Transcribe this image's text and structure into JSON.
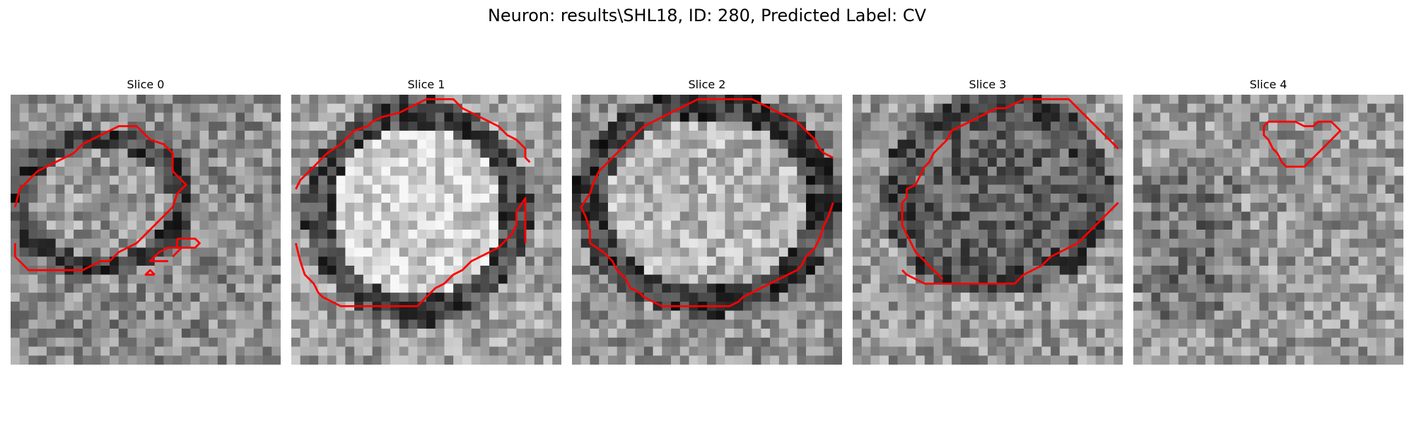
{
  "figure": {
    "title": "Neuron: results\\SHL18, ID: 280, Predicted Label: CV"
  },
  "panels": [
    {
      "title": "Slice 0",
      "contours": [
        [
          [
            0.5,
            12.5
          ],
          [
            1,
            10.5
          ],
          [
            2.5,
            9
          ],
          [
            3,
            8.5
          ],
          [
            4,
            8
          ],
          [
            5,
            7.5
          ],
          [
            6,
            7
          ],
          [
            7,
            6.5
          ],
          [
            8,
            5.5
          ],
          [
            9,
            5
          ],
          [
            10,
            4.5
          ],
          [
            12,
            3.5
          ],
          [
            14,
            3.5
          ],
          [
            15,
            4.5
          ],
          [
            15.5,
            5
          ],
          [
            17,
            5.5
          ],
          [
            18,
            6.5
          ],
          [
            18,
            8.5
          ],
          [
            19,
            9.5
          ],
          [
            19.5,
            10
          ],
          [
            18.5,
            11
          ],
          [
            18,
            12.5
          ],
          [
            17,
            13.5
          ],
          [
            16,
            14.5
          ],
          [
            15,
            15.5
          ],
          [
            14,
            16.5
          ],
          [
            13,
            17
          ],
          [
            12,
            17.5
          ],
          [
            11,
            18.5
          ],
          [
            10,
            18.5
          ],
          [
            9,
            19
          ],
          [
            8,
            19.5
          ],
          [
            6,
            19.5
          ],
          [
            4,
            19.5
          ],
          [
            2,
            19.5
          ],
          [
            1,
            18.5
          ],
          [
            0.5,
            18
          ],
          [
            0.5,
            16.5
          ]
        ],
        [
          [
            18,
            18
          ],
          [
            18.5,
            17.5
          ],
          [
            19,
            17
          ],
          [
            17.5,
            17
          ],
          [
            16.5,
            17.5
          ],
          [
            16,
            18
          ],
          [
            15.5,
            18.5
          ],
          [
            16.5,
            18.5
          ],
          [
            17.5,
            18.5
          ]
        ],
        [
          [
            16,
            20
          ],
          [
            15,
            20
          ],
          [
            15.5,
            19.5
          ],
          [
            16,
            20
          ]
        ],
        [
          [
            18.5,
            16
          ],
          [
            20.5,
            16
          ],
          [
            21,
            16.5
          ],
          [
            20.5,
            17
          ],
          [
            18.5,
            17
          ],
          [
            18.5,
            16
          ]
        ]
      ]
    },
    {
      "title": "Slice 1",
      "contours": [
        [
          [
            0.5,
            16.5
          ],
          [
            1,
            18.5
          ],
          [
            1.5,
            20
          ],
          [
            2.5,
            21
          ],
          [
            3,
            22
          ],
          [
            3.5,
            22.5
          ],
          [
            4.5,
            23
          ],
          [
            5.5,
            23.5
          ],
          [
            8,
            23.5
          ],
          [
            11,
            23.5
          ],
          [
            13,
            23.5
          ],
          [
            14,
            23.5
          ],
          [
            15,
            22.5
          ],
          [
            16,
            21.5
          ],
          [
            17,
            21
          ],
          [
            18,
            20
          ],
          [
            19,
            19.5
          ],
          [
            20,
            18.5
          ],
          [
            21,
            18
          ],
          [
            22,
            17.5
          ],
          [
            23,
            17
          ],
          [
            23.5,
            16.5
          ],
          [
            24,
            16
          ],
          [
            24.5,
            15.5
          ],
          [
            25,
            14.5
          ],
          [
            25,
            13
          ],
          [
            26,
            11.5
          ],
          [
            26,
            16.5
          ]
        ],
        [
          [
            0.5,
            10.5
          ],
          [
            1,
            9.5
          ],
          [
            2,
            8.5
          ],
          [
            3,
            7.5
          ],
          [
            4,
            6.5
          ],
          [
            5.5,
            5.5
          ],
          [
            6,
            5
          ],
          [
            7,
            4
          ],
          [
            8.5,
            3.5
          ],
          [
            9,
            3
          ],
          [
            10,
            2.5
          ],
          [
            12,
            2
          ],
          [
            13,
            1.5
          ],
          [
            14,
            1
          ],
          [
            15,
            0.5
          ],
          [
            16,
            0.5
          ],
          [
            18,
            0.5
          ],
          [
            19,
            1.5
          ],
          [
            20,
            2
          ],
          [
            21,
            2.5
          ],
          [
            22,
            3
          ],
          [
            23,
            3.5
          ],
          [
            24,
            4.5
          ],
          [
            25,
            5
          ],
          [
            26,
            6
          ],
          [
            26,
            7
          ],
          [
            26.5,
            7.5
          ]
        ]
      ]
    },
    {
      "title": "Slice 2",
      "contours": [
        [
          [
            2.5,
            9.5
          ],
          [
            3,
            8.5
          ],
          [
            4,
            7.5
          ],
          [
            5,
            6.5
          ],
          [
            6,
            5.5
          ],
          [
            7,
            4.5
          ],
          [
            8,
            3.5
          ],
          [
            9,
            3
          ],
          [
            10,
            2.5
          ],
          [
            11,
            2
          ],
          [
            12,
            1.5
          ],
          [
            13,
            1
          ],
          [
            14,
            0.5
          ],
          [
            16,
            0.5
          ],
          [
            18,
            0.5
          ],
          [
            20,
            0.5
          ],
          [
            21,
            1
          ],
          [
            22,
            1.5
          ],
          [
            23,
            2
          ],
          [
            24,
            2.5
          ],
          [
            25,
            3
          ],
          [
            26,
            4
          ],
          [
            27,
            5
          ],
          [
            27.5,
            6
          ],
          [
            28,
            6.5
          ],
          [
            29,
            7
          ]
        ],
        [
          [
            29,
            12
          ],
          [
            28.5,
            13.5
          ],
          [
            28,
            14.5
          ],
          [
            27.5,
            16
          ],
          [
            27,
            17
          ],
          [
            26,
            18
          ],
          [
            25.5,
            19
          ],
          [
            25,
            19.5
          ],
          [
            24,
            20
          ],
          [
            23,
            20.5
          ],
          [
            22,
            21
          ],
          [
            21,
            21.5
          ],
          [
            20,
            22
          ],
          [
            19,
            22.5
          ],
          [
            18.5,
            23
          ],
          [
            17.5,
            23.5
          ],
          [
            16,
            23.5
          ],
          [
            14,
            23.5
          ],
          [
            12,
            23.5
          ],
          [
            10,
            23.5
          ],
          [
            9,
            23
          ],
          [
            8,
            22.5
          ],
          [
            7.5,
            22
          ],
          [
            6.5,
            21.5
          ],
          [
            6,
            20.5
          ],
          [
            5,
            19.5
          ],
          [
            4.5,
            18.5
          ],
          [
            3.5,
            17.5
          ],
          [
            2,
            16.5
          ],
          [
            2,
            15
          ],
          [
            1.5,
            13.5
          ],
          [
            1,
            12.5
          ],
          [
            2,
            11
          ],
          [
            2.5,
            9.5
          ]
        ]
      ]
    },
    {
      "title": "Slice 3",
      "contours": [
        [
          [
            5.5,
            19.5
          ],
          [
            6,
            20
          ],
          [
            7,
            20.5
          ],
          [
            8,
            21
          ],
          [
            10,
            21
          ],
          [
            12,
            21
          ],
          [
            14,
            21
          ],
          [
            16,
            21
          ],
          [
            18,
            21
          ],
          [
            19,
            20
          ],
          [
            20,
            19.5
          ],
          [
            21,
            19
          ],
          [
            22,
            18
          ],
          [
            23,
            17.5
          ],
          [
            24,
            17
          ],
          [
            25,
            16.5
          ],
          [
            26,
            15.5
          ],
          [
            27,
            14.5
          ],
          [
            28,
            13.5
          ],
          [
            29,
            12.5
          ],
          [
            29.5,
            12
          ]
        ],
        [
          [
            29.5,
            6
          ],
          [
            29,
            5.5
          ],
          [
            28,
            4.5
          ],
          [
            27,
            3.5
          ],
          [
            26.5,
            3
          ],
          [
            26,
            2.5
          ],
          [
            25,
            1.5
          ],
          [
            24,
            0.5
          ],
          [
            22,
            0.5
          ],
          [
            20,
            0.5
          ],
          [
            19,
            0.5
          ],
          [
            18,
            1
          ],
          [
            17,
            1.5
          ],
          [
            16,
            1.5
          ],
          [
            15,
            2
          ],
          [
            14,
            2.5
          ],
          [
            13,
            3
          ],
          [
            12,
            3.5
          ],
          [
            11,
            4
          ],
          [
            10.5,
            5
          ],
          [
            10,
            5.5
          ],
          [
            9,
            6.5
          ],
          [
            8.5,
            7.5
          ],
          [
            8,
            8
          ],
          [
            7.5,
            9
          ],
          [
            7,
            10
          ],
          [
            6,
            10.5
          ],
          [
            6,
            11.5
          ],
          [
            5.5,
            12
          ],
          [
            5.5,
            13
          ],
          [
            5.5,
            14.5
          ],
          [
            6,
            15.5
          ],
          [
            6.5,
            16.5
          ],
          [
            7,
            17.5
          ],
          [
            8,
            18.5
          ],
          [
            9,
            19.5
          ],
          [
            10,
            20.5
          ]
        ]
      ]
    },
    {
      "title": "Slice 4",
      "contours": [
        [
          [
            15,
            5
          ],
          [
            14.5,
            4.5
          ],
          [
            14.5,
            3.5
          ],
          [
            15,
            3
          ],
          [
            16,
            3
          ],
          [
            17,
            3
          ],
          [
            18,
            3
          ],
          [
            19,
            3.5
          ],
          [
            20,
            3.5
          ],
          [
            20.5,
            3
          ],
          [
            21,
            3
          ],
          [
            22,
            3
          ],
          [
            22.5,
            3.5
          ],
          [
            23,
            4
          ],
          [
            22.5,
            4.5
          ],
          [
            22,
            5
          ],
          [
            21,
            6
          ],
          [
            20,
            7
          ],
          [
            19,
            8
          ],
          [
            18,
            8
          ],
          [
            17,
            8
          ],
          [
            16.5,
            7.5
          ],
          [
            16,
            6.5
          ],
          [
            15.5,
            6
          ],
          [
            15,
            5
          ]
        ]
      ]
    }
  ]
}
